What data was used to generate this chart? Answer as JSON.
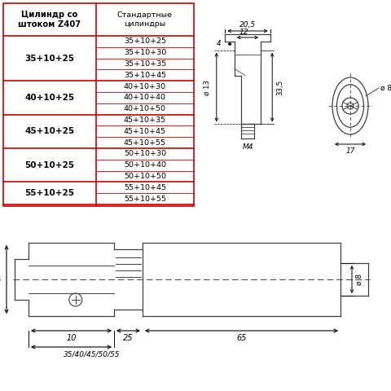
{
  "bg_color": "#ffffff",
  "table": {
    "col1_header": "Цилиндр со\nштоком Z407",
    "col2_header": "Стандартные\nцилиндры",
    "rows": [
      {
        "left": "35+10+25",
        "right": [
          "35+10+25",
          "35+10+30",
          "35+10+35",
          "35+10+45"
        ]
      },
      {
        "left": "40+10+25",
        "right": [
          "40+10+30",
          "40+10+40",
          "40+10+50"
        ]
      },
      {
        "left": "45+10+25",
        "right": [
          "45+10+35",
          "45+10+45",
          "45+10+55"
        ]
      },
      {
        "left": "50+10+25",
        "right": [
          "50+10+30",
          "50+10+40",
          "50+10+50"
        ]
      },
      {
        "left": "55+10+25",
        "right": [
          "55+10+45",
          "55+10+55"
        ]
      }
    ],
    "border_color": "#cc0000",
    "text_color": "#000000"
  },
  "draw_color": "#404040"
}
